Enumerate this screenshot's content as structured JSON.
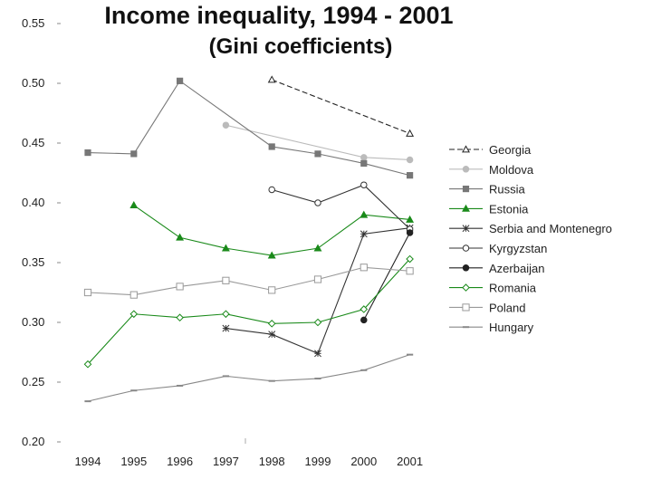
{
  "title": "Income inequality, 1994 - 2001",
  "subtitle": "(Gini coefficients)",
  "chart_data": {
    "type": "line",
    "title": "Income inequality, 1994 - 2001",
    "subtitle": "(Gini coefficients)",
    "xlabel": "",
    "ylabel": "",
    "x": [
      "1994",
      "1995",
      "1996",
      "1997",
      "1998",
      "1999",
      "2000",
      "2001"
    ],
    "ylim": [
      0.2,
      0.55
    ],
    "yticks": [
      "0.55",
      "0.50",
      "0.45",
      "0.40",
      "0.35",
      "0.30",
      "0.25",
      "0.20"
    ],
    "grid": false,
    "legend_position": "right",
    "series": [
      {
        "name": "Georgia",
        "color": "#222222",
        "marker": "triangle-open",
        "dash": "6,3",
        "values": [
          null,
          null,
          null,
          null,
          0.503,
          null,
          null,
          0.458
        ]
      },
      {
        "name": "Moldova",
        "color": "#bbbbbb",
        "marker": "circle-filled",
        "dash": "",
        "values": [
          null,
          null,
          null,
          0.465,
          null,
          null,
          0.438,
          0.436
        ]
      },
      {
        "name": "Russia",
        "color": "#777777",
        "marker": "square-filled",
        "dash": "",
        "values": [
          0.442,
          0.441,
          0.502,
          null,
          0.447,
          0.441,
          0.433,
          0.423
        ]
      },
      {
        "name": "Estonia",
        "color": "#1a8a1a",
        "marker": "triangle-filled",
        "dash": "",
        "values": [
          null,
          0.398,
          0.371,
          0.362,
          0.356,
          0.362,
          0.39,
          0.386
        ]
      },
      {
        "name": "Serbia and Montenegro",
        "color": "#333333",
        "marker": "star",
        "dash": "",
        "values": [
          null,
          null,
          null,
          0.295,
          0.29,
          0.274,
          0.374,
          0.379
        ]
      },
      {
        "name": "Kyrgyzstan",
        "color": "#333333",
        "marker": "circle-open",
        "dash": "",
        "values": [
          null,
          null,
          null,
          null,
          0.411,
          0.4,
          0.415,
          0.378
        ]
      },
      {
        "name": "Azerbaijan",
        "color": "#222222",
        "marker": "circle-filled",
        "dash": "",
        "values": [
          null,
          null,
          null,
          null,
          null,
          null,
          0.302,
          0.375
        ]
      },
      {
        "name": "Romania",
        "color": "#1a8a1a",
        "marker": "diamond-open",
        "dash": "",
        "values": [
          0.265,
          0.307,
          0.304,
          0.307,
          0.299,
          0.3,
          0.311,
          0.353
        ]
      },
      {
        "name": "Poland",
        "color": "#999999",
        "marker": "square-open",
        "dash": "",
        "values": [
          0.325,
          0.323,
          0.33,
          0.335,
          0.327,
          0.336,
          0.346,
          0.343
        ]
      },
      {
        "name": "Hungary",
        "color": "#888888",
        "marker": "dash",
        "dash": "",
        "values": [
          0.234,
          0.243,
          0.247,
          0.255,
          0.251,
          0.253,
          0.26,
          0.273
        ]
      }
    ]
  }
}
